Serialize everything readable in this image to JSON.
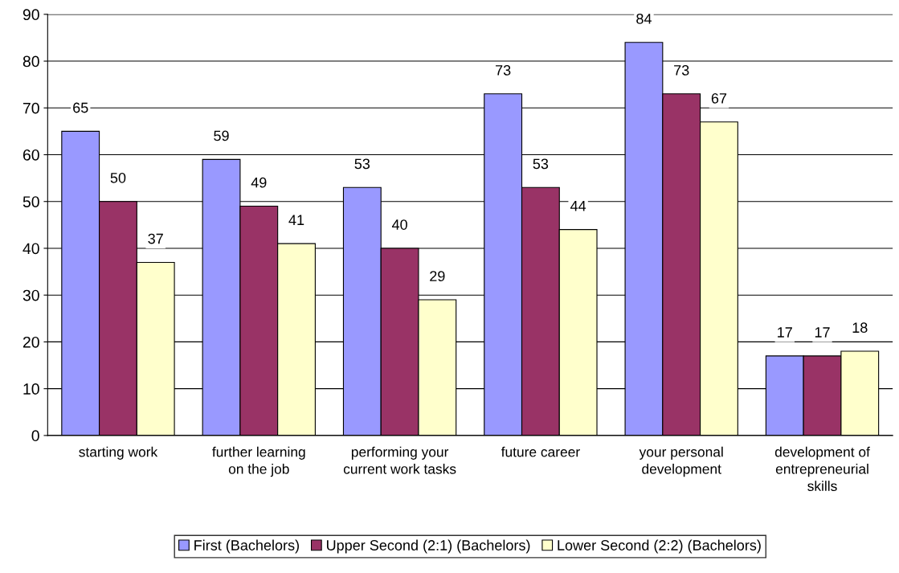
{
  "chart_data": {
    "type": "bar",
    "categories": [
      "starting work",
      "further learning on the job",
      "performing your current work tasks",
      "future career",
      "your personal development",
      "development of entrepreneurial skills"
    ],
    "series": [
      {
        "name": "First (Bachelors)",
        "color": "#9999ff",
        "values": [
          65,
          59,
          53,
          73,
          84,
          17
        ]
      },
      {
        "name": "Upper Second (2:1) (Bachelors)",
        "color": "#993366",
        "values": [
          50,
          49,
          40,
          53,
          73,
          17
        ]
      },
      {
        "name": "Lower Second (2:2) (Bachelors)",
        "color": "#ffffcc",
        "values": [
          37,
          41,
          29,
          44,
          67,
          18
        ]
      }
    ],
    "ylim": [
      0,
      90
    ],
    "yticks": [
      0,
      10,
      20,
      30,
      40,
      50,
      60,
      70,
      80,
      90
    ],
    "grid": "y",
    "legend": "bottom",
    "data_labels": true
  }
}
